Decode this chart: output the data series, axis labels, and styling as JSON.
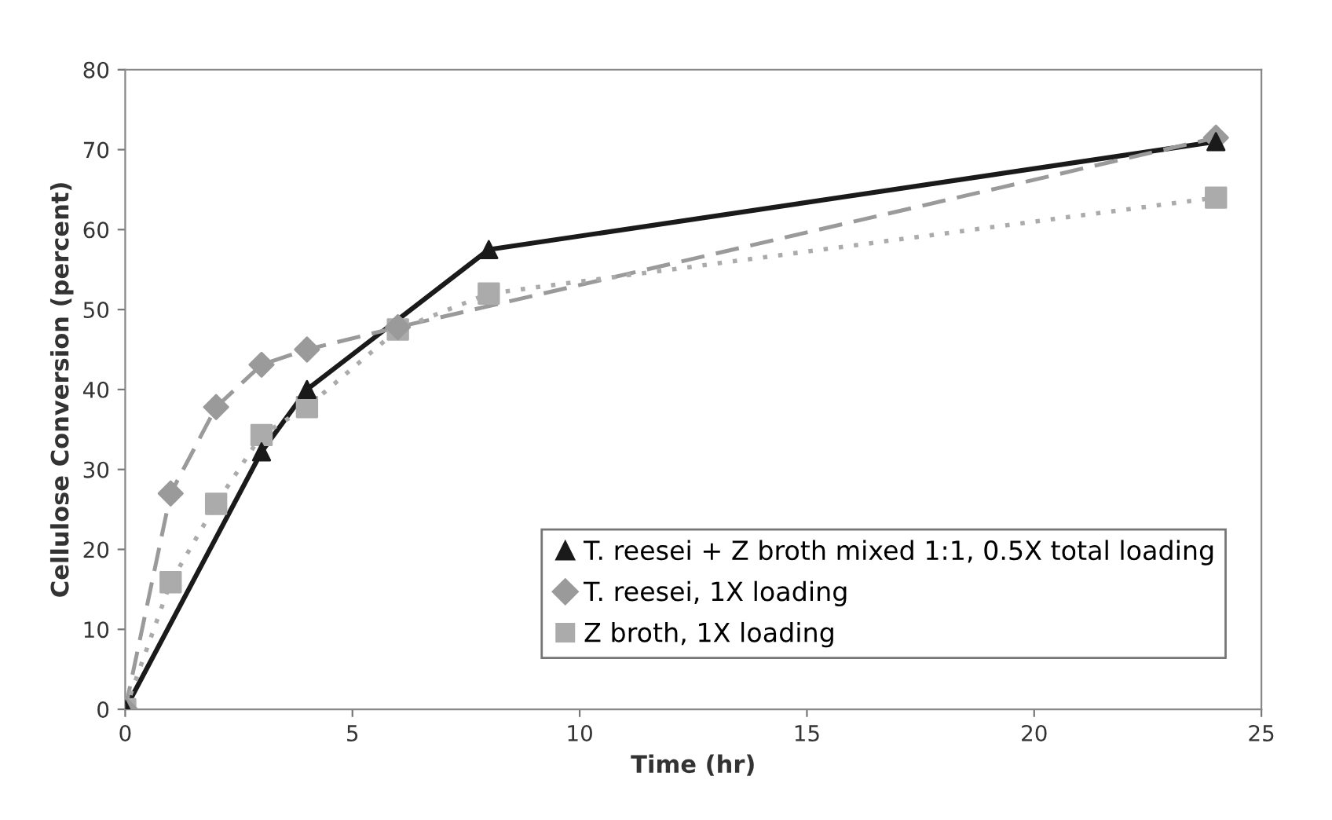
{
  "chart_data": {
    "type": "line",
    "xlabel": "Time (hr)",
    "ylabel": "Cellulose Conversion (percent)",
    "xlim": [
      0,
      25
    ],
    "ylim": [
      0,
      80
    ],
    "xticks": [
      0,
      5,
      10,
      15,
      20,
      25
    ],
    "yticks": [
      0,
      10,
      20,
      30,
      40,
      50,
      60,
      70,
      80
    ],
    "grid": false,
    "legend": "bottom right",
    "series": [
      {
        "name": "T. reesei + Z broth mixed 1:1, 0.5X total loading",
        "color": "#1a1a1a",
        "marker": "triangle",
        "line_style": "solid",
        "x": [
          0,
          3,
          4,
          8,
          24
        ],
        "values": [
          0,
          32.2,
          40,
          57.5,
          71
        ]
      },
      {
        "name": "T. reesei, 1X loading",
        "color": "#9a9a9a",
        "marker": "diamond",
        "line_style": "dashed",
        "x": [
          0,
          1,
          2,
          3,
          4,
          6,
          24
        ],
        "values": [
          0,
          27,
          37.8,
          43.1,
          45,
          47.8,
          71.5
        ]
      },
      {
        "name": "Z broth, 1X loading",
        "color": "#ababab",
        "marker": "square",
        "line_style": "dotted",
        "x": [
          0,
          1,
          2,
          3,
          4,
          6,
          8,
          24
        ],
        "values": [
          0,
          15.9,
          25.7,
          34.3,
          37.8,
          47.5,
          52,
          64
        ]
      }
    ]
  }
}
